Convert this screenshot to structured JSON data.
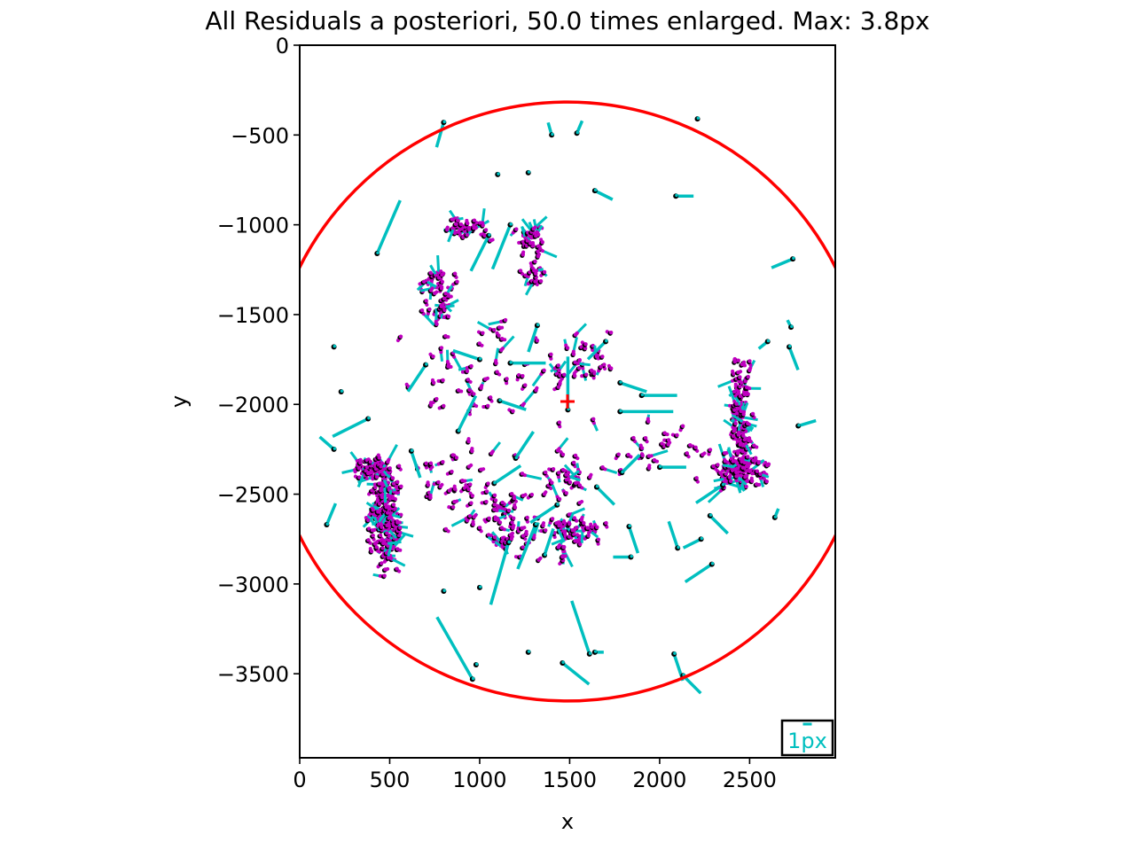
{
  "chart_data": {
    "type": "scatter",
    "title": "All Residuals a posteriori, 50.0 times enlarged. Max: 3.8px",
    "xlabel": "x",
    "ylabel": "y",
    "xlim": [
      0,
      2976
    ],
    "ylim": [
      -3968,
      0
    ],
    "x_ticks": [
      0,
      500,
      1000,
      1500,
      2000,
      2500
    ],
    "y_ticks": [
      0,
      -500,
      -1000,
      -1500,
      -2000,
      -2500,
      -3000,
      -3500
    ],
    "x_tick_labels": [
      "0",
      "500",
      "1000",
      "1500",
      "2000",
      "2500"
    ],
    "y_tick_labels": [
      "0",
      "−500",
      "−1000",
      "−1500",
      "−2000",
      "−2500",
      "−3000",
      "−3500"
    ],
    "grid": false,
    "colors": {
      "circle": "#ff0000",
      "center_marker": "#ff0000",
      "residual_vector": "#00bfbf",
      "tie_point": "#bf00bf",
      "point": "#000000",
      "scale_text": "#00bfbf"
    },
    "circle": {
      "center": [
        1488,
        -1984
      ],
      "radius": 1665
    },
    "center_marker": [
      1488,
      -1984
    ],
    "scale_bar": {
      "label": "1px",
      "length_px_enlarged": 50
    },
    "tie_point_clusters": [
      {
        "x": 470,
        "y": -2620,
        "sx": 60,
        "sy": 200,
        "n": 150
      },
      {
        "x": 410,
        "y": -2360,
        "sx": 70,
        "sy": 40,
        "n": 45
      },
      {
        "x": 2440,
        "y": -2380,
        "sx": 110,
        "sy": 60,
        "n": 80
      },
      {
        "x": 2450,
        "y": -2080,
        "sx": 40,
        "sy": 200,
        "n": 90
      },
      {
        "x": 1540,
        "y": -2700,
        "sx": 100,
        "sy": 60,
        "n": 40
      },
      {
        "x": 1270,
        "y": -1080,
        "sx": 60,
        "sy": 60,
        "n": 30
      },
      {
        "x": 1290,
        "y": -1270,
        "sx": 50,
        "sy": 50,
        "n": 15
      },
      {
        "x": 760,
        "y": -1370,
        "sx": 90,
        "sy": 110,
        "n": 40
      },
      {
        "x": 950,
        "y": -1020,
        "sx": 100,
        "sy": 40,
        "n": 30
      },
      {
        "x": 1120,
        "y": -2640,
        "sx": 160,
        "sy": 130,
        "n": 45
      },
      {
        "x": 1580,
        "y": -1770,
        "sx": 130,
        "sy": 120,
        "n": 30
      },
      {
        "x": 1550,
        "y": -2400,
        "sx": 130,
        "sy": 100,
        "n": 25
      },
      {
        "x": 2000,
        "y": -2250,
        "sx": 200,
        "sy": 120,
        "n": 25
      },
      {
        "x": 850,
        "y": -2420,
        "sx": 200,
        "sy": 170,
        "n": 35
      },
      {
        "x": 1100,
        "y": -1900,
        "sx": 300,
        "sy": 240,
        "n": 50
      },
      {
        "x": 1300,
        "y": -2800,
        "sx": 250,
        "sy": 100,
        "n": 20
      }
    ],
    "isolated_points": [
      {
        "x": 800,
        "y": -430,
        "dx": -8,
        "dy": 28
      },
      {
        "x": 2210,
        "y": -410,
        "dx": 0,
        "dy": 0
      },
      {
        "x": 1400,
        "y": -500,
        "dx": -4,
        "dy": -14
      },
      {
        "x": 1540,
        "y": -490,
        "dx": 6,
        "dy": -14
      },
      {
        "x": 1100,
        "y": -720,
        "dx": 0,
        "dy": 0
      },
      {
        "x": 1270,
        "y": -710,
        "dx": 0,
        "dy": 0
      },
      {
        "x": 2090,
        "y": -840,
        "dx": 20,
        "dy": 0
      },
      {
        "x": 1640,
        "y": -810,
        "dx": 20,
        "dy": 10
      },
      {
        "x": 2740,
        "y": -1190,
        "dx": -24,
        "dy": 10
      },
      {
        "x": 430,
        "y": -1160,
        "dx": 26,
        "dy": -60
      },
      {
        "x": 2600,
        "y": -1650,
        "dx": -10,
        "dy": 8
      },
      {
        "x": 2720,
        "y": -1680,
        "dx": 10,
        "dy": 26
      },
      {
        "x": 2730,
        "y": -1570,
        "dx": -4,
        "dy": -8
      },
      {
        "x": 190,
        "y": -1680,
        "dx": 0,
        "dy": 0
      },
      {
        "x": 380,
        "y": -2080,
        "dx": -40,
        "dy": 20
      },
      {
        "x": 230,
        "y": -1930,
        "dx": 0,
        "dy": 0
      },
      {
        "x": 2770,
        "y": -2120,
        "dx": 20,
        "dy": -6
      },
      {
        "x": 190,
        "y": -2250,
        "dx": -16,
        "dy": -14
      },
      {
        "x": 2640,
        "y": -2630,
        "dx": 4,
        "dy": -10
      },
      {
        "x": 150,
        "y": -2670,
        "dx": 10,
        "dy": -24
      },
      {
        "x": 800,
        "y": -3040,
        "dx": 0,
        "dy": 0
      },
      {
        "x": 1000,
        "y": -3020,
        "dx": 0,
        "dy": 0
      },
      {
        "x": 980,
        "y": -3450,
        "dx": 0,
        "dy": 0
      },
      {
        "x": 960,
        "y": -3530,
        "dx": -40,
        "dy": -70
      },
      {
        "x": 1270,
        "y": -3380,
        "dx": 0,
        "dy": 0
      },
      {
        "x": 1460,
        "y": -3440,
        "dx": 30,
        "dy": 24
      },
      {
        "x": 1610,
        "y": -3390,
        "dx": -20,
        "dy": -60
      },
      {
        "x": 1640,
        "y": -3380,
        "dx": 10,
        "dy": 0
      },
      {
        "x": 2080,
        "y": -3390,
        "dx": 10,
        "dy": 30
      },
      {
        "x": 2130,
        "y": -3510,
        "dx": 20,
        "dy": 20
      },
      {
        "x": 2290,
        "y": -2890,
        "dx": -30,
        "dy": 20
      },
      {
        "x": 2230,
        "y": -2750,
        "dx": -20,
        "dy": 10
      },
      {
        "x": 2280,
        "y": -2620,
        "dx": 20,
        "dy": 20
      },
      {
        "x": 1840,
        "y": -2850,
        "dx": -20,
        "dy": 0
      },
      {
        "x": 1830,
        "y": -2680,
        "dx": 10,
        "dy": 30
      },
      {
        "x": 1790,
        "y": -2380,
        "dx": 20,
        "dy": -20
      },
      {
        "x": 1780,
        "y": -2040,
        "dx": 60,
        "dy": 0
      },
      {
        "x": 1780,
        "y": -1880,
        "dx": 30,
        "dy": 10
      },
      {
        "x": 1900,
        "y": -1950,
        "dx": 40,
        "dy": 0
      },
      {
        "x": 2100,
        "y": -2800,
        "dx": -10,
        "dy": -30
      },
      {
        "x": 2000,
        "y": -2350,
        "dx": 30,
        "dy": 0
      },
      {
        "x": 2350,
        "y": -2450,
        "dx": -30,
        "dy": 20
      },
      {
        "x": 1170,
        "y": -1000,
        "dx": -20,
        "dy": 50
      },
      {
        "x": 1050,
        "y": -1060,
        "dx": -20,
        "dy": 40
      },
      {
        "x": 1320,
        "y": -1560,
        "dx": -10,
        "dy": 30
      },
      {
        "x": 1110,
        "y": -1980,
        "dx": 30,
        "dy": 10
      },
      {
        "x": 1490,
        "y": -2030,
        "dx": 0,
        "dy": -60
      },
      {
        "x": 1310,
        "y": -2670,
        "dx": -20,
        "dy": 50
      },
      {
        "x": 1160,
        "y": -2770,
        "dx": -20,
        "dy": 70
      },
      {
        "x": 1360,
        "y": -2840,
        "dx": 10,
        "dy": -30
      },
      {
        "x": 880,
        "y": -2150,
        "dx": 20,
        "dy": -40
      },
      {
        "x": 620,
        "y": -2260,
        "dx": 10,
        "dy": 30
      },
      {
        "x": 700,
        "y": -1780,
        "dx": -20,
        "dy": 30
      },
      {
        "x": 1700,
        "y": -1650,
        "dx": -20,
        "dy": 20
      },
      {
        "x": 1170,
        "y": -1770,
        "dx": 40,
        "dy": 0
      },
      {
        "x": 1000,
        "y": -1750,
        "dx": -30,
        "dy": -10
      },
      {
        "x": 1200,
        "y": -2300,
        "dx": 20,
        "dy": -30
      },
      {
        "x": 1080,
        "y": -2440,
        "dx": 30,
        "dy": -20
      },
      {
        "x": 1430,
        "y": -2560,
        "dx": -30,
        "dy": 20
      },
      {
        "x": 1650,
        "y": -2460,
        "dx": 20,
        "dy": 20
      }
    ]
  },
  "legend": null
}
